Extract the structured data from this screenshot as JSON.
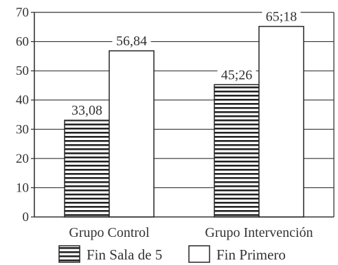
{
  "chart_data": {
    "type": "bar",
    "categories": [
      "Grupo Control",
      "Grupo Intervención"
    ],
    "series": [
      {
        "name": "Fin Sala de 5",
        "values": [
          33.08,
          45.26
        ],
        "pattern": "horizontal-stripes"
      },
      {
        "name": "Fin Primero",
        "values": [
          56.84,
          65.18
        ],
        "pattern": "solid-white"
      }
    ],
    "data_labels": [
      [
        "33,08",
        "45;26"
      ],
      [
        "56,84",
        "65;18"
      ]
    ],
    "yticks": [
      0,
      10,
      20,
      30,
      40,
      50,
      60,
      70
    ],
    "ylim": [
      0,
      70
    ],
    "grid": true,
    "legend_position": "bottom",
    "title": "",
    "xlabel": "",
    "ylabel": "",
    "colors": {
      "ink": "#222222",
      "grid": "#333333",
      "fill": "#ffffff"
    }
  }
}
